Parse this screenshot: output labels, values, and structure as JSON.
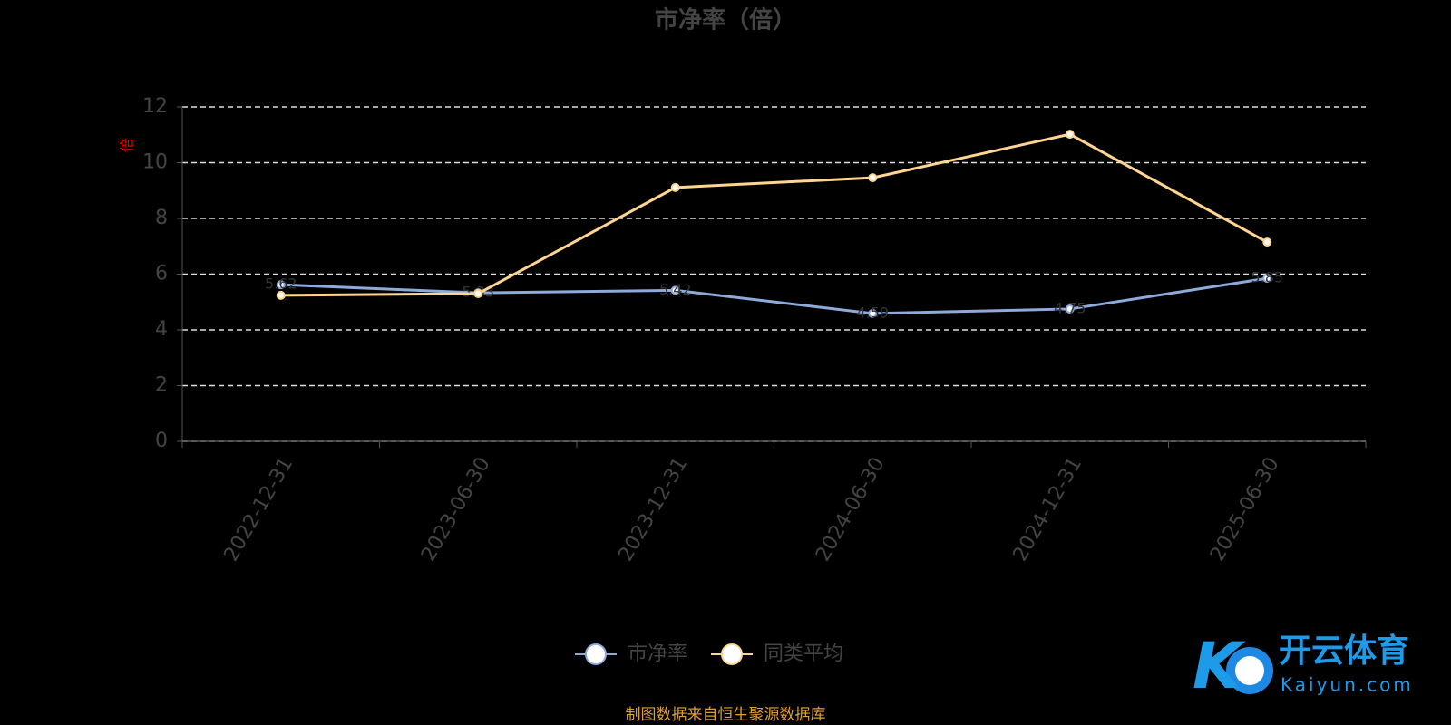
{
  "chart_data": {
    "type": "line",
    "title": "市净率（倍）",
    "y_label": "倍",
    "categories": [
      "2022-12-31",
      "2023-06-30",
      "2023-12-31",
      "2024-06-30",
      "2024-12-31",
      "2025-06-30"
    ],
    "series": [
      {
        "name": "市净率",
        "color": "#8eaadb",
        "values": [
          5.62,
          5.33,
          5.42,
          4.59,
          4.75,
          5.85
        ]
      },
      {
        "name": "同类平均",
        "color": "#ffd591",
        "values": [
          5.24,
          5.3,
          9.11,
          9.46,
          11.02,
          7.15
        ]
      }
    ],
    "ylim": [
      0,
      12
    ],
    "yticks": [
      0,
      2,
      4,
      6,
      8,
      10,
      12
    ],
    "grid": true,
    "source": "制图数据来自恒生聚源数据库"
  },
  "watermark": {
    "name": "开云体育",
    "site": "Kaiyun.com"
  }
}
